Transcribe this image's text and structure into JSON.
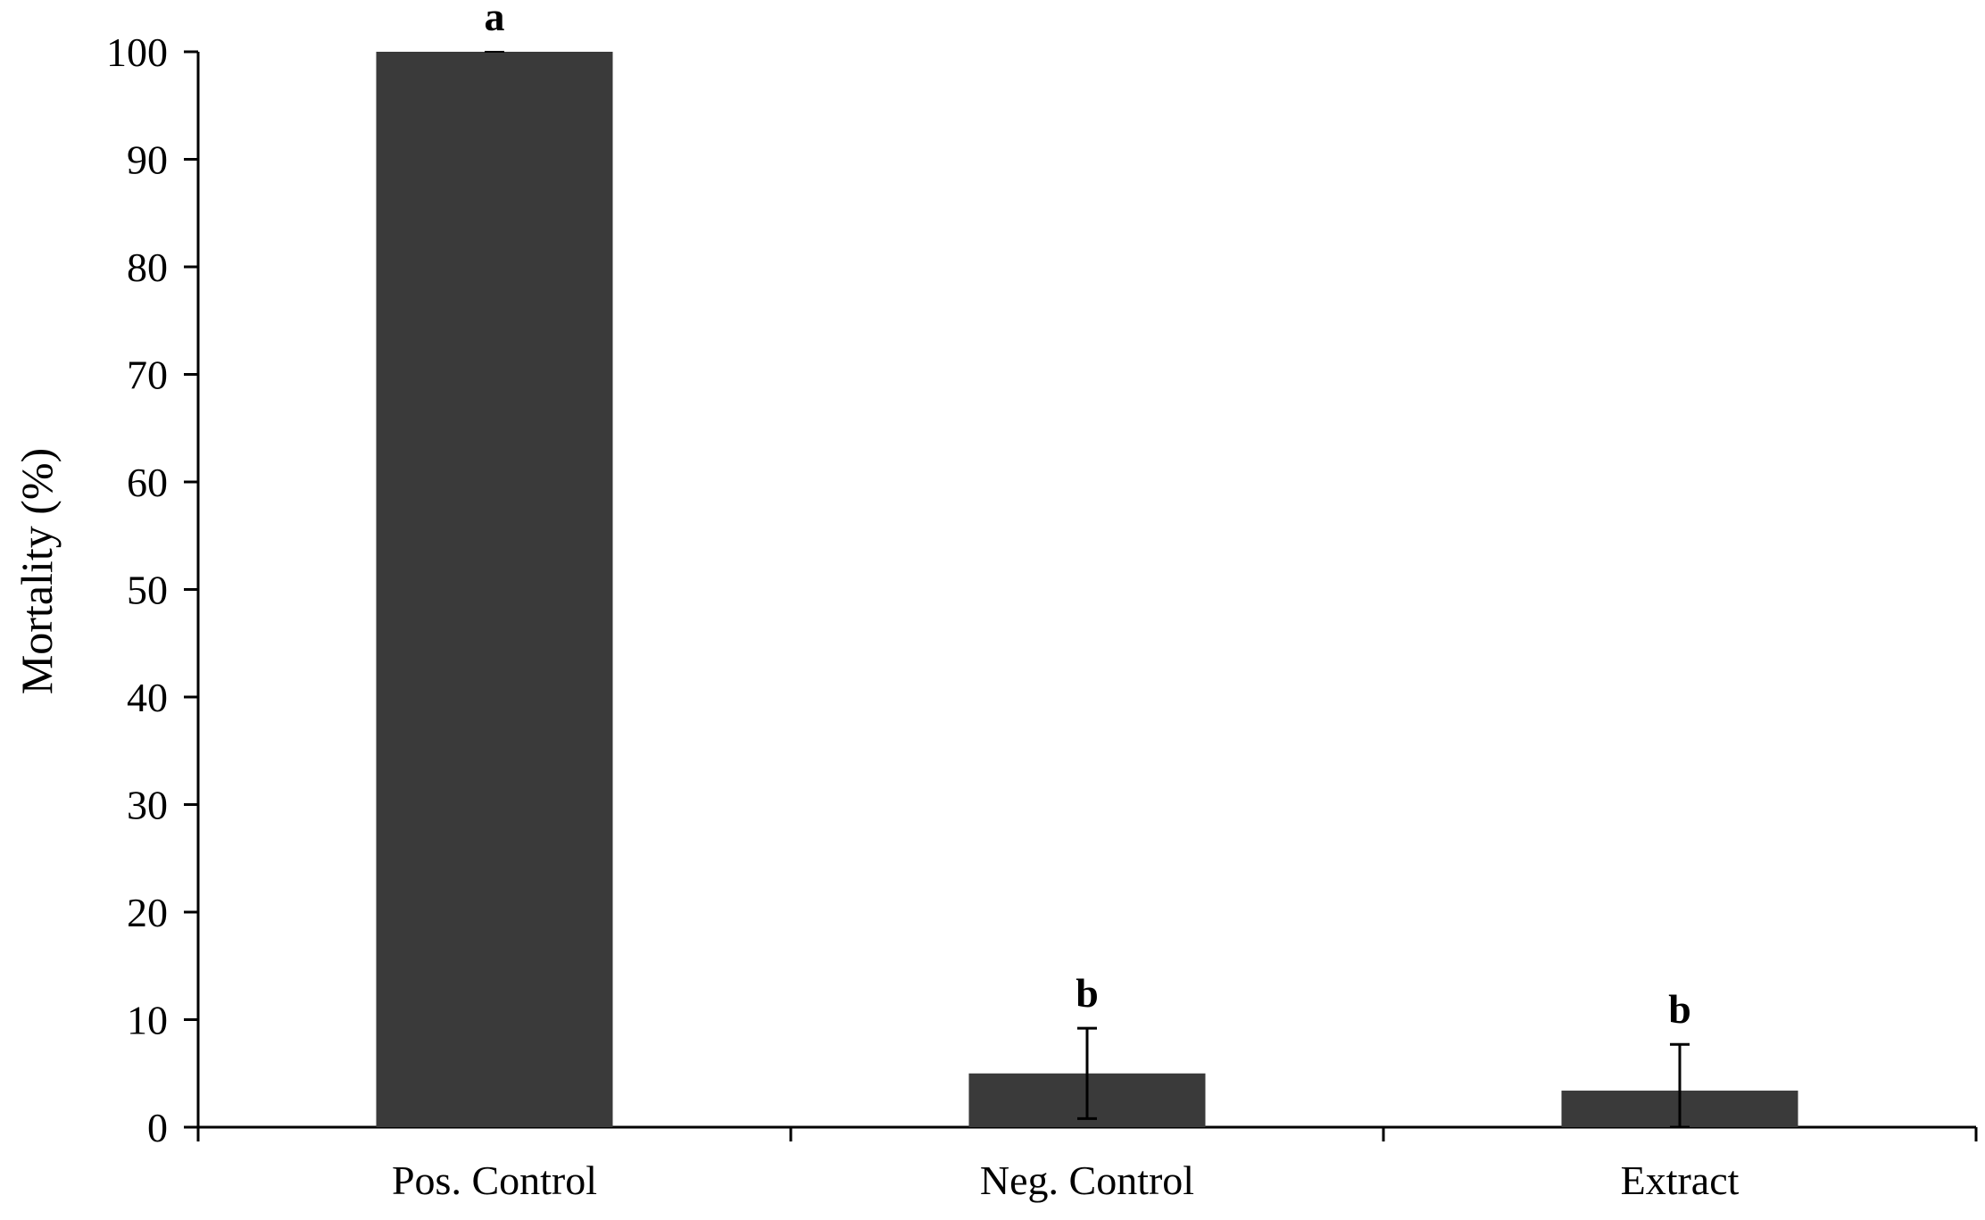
{
  "chart_data": {
    "type": "bar",
    "title": "",
    "xlabel": "",
    "ylabel": "Mortality  (%)",
    "ylim": [
      0,
      100
    ],
    "yticks": [
      0,
      10,
      20,
      30,
      40,
      50,
      60,
      70,
      80,
      90,
      100
    ],
    "grid": false,
    "legend": "none",
    "categories": [
      "Pos. Control",
      "Neg. Control",
      "Extract"
    ],
    "values": [
      100,
      5,
      3.4
    ],
    "error": [
      0,
      4.2,
      4.3
    ],
    "significance_letters": [
      "a",
      "b",
      "b"
    ],
    "bar_color": "#3a3a3a",
    "axis_color": "#000000"
  }
}
